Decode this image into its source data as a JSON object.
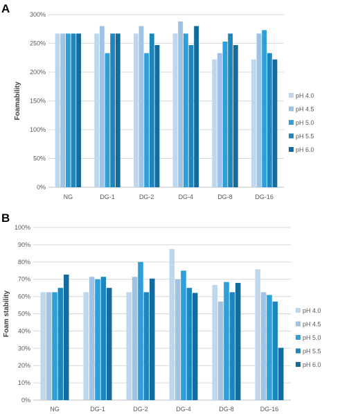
{
  "colors": [
    "#BDD7EE",
    "#9DC3E6",
    "#2E9FD8",
    "#1F86BD",
    "#136C9D"
  ],
  "chart_data": [
    {
      "panel_label": "A",
      "type": "bar",
      "categories": [
        "NG",
        "DG-1",
        "DG-2",
        "DG-4",
        "DG-8",
        "DG-16"
      ],
      "ylabel": "Foamability",
      "ylim": [
        0,
        300
      ],
      "yticks": [
        "0%",
        "50%",
        "100%",
        "150%",
        "200%",
        "250%",
        "300%"
      ],
      "series": [
        {
          "name": "pH 4.0",
          "values": [
            267,
            267,
            267,
            267,
            222,
            222
          ]
        },
        {
          "name": "pH 4.5",
          "values": [
            267,
            280,
            280,
            288,
            233,
            267
          ]
        },
        {
          "name": "pH 5.0",
          "values": [
            267,
            233,
            233,
            267,
            253,
            273
          ]
        },
        {
          "name": "pH 5.5",
          "values": [
            267,
            267,
            267,
            247,
            267,
            233
          ]
        },
        {
          "name": "pH 6.0",
          "values": [
            267,
            267,
            247,
            280,
            247,
            222
          ]
        }
      ]
    },
    {
      "panel_label": "B",
      "type": "bar",
      "categories": [
        "NG",
        "DG-1",
        "DG-2",
        "DG-4",
        "DG-8",
        "DG-16"
      ],
      "ylabel": "Foam stability",
      "ylim": [
        0,
        100
      ],
      "yticks": [
        "0%",
        "10%",
        "20%",
        "30%",
        "40%",
        "50%",
        "60%",
        "70%",
        "80%",
        "90%",
        "100%"
      ],
      "series": [
        {
          "name": "pH 4.0",
          "values": [
            62.5,
            62.5,
            62.5,
            87.5,
            66.7,
            75.8
          ]
        },
        {
          "name": "pH 4.5",
          "values": [
            62.5,
            71.4,
            71.4,
            70.0,
            57.1,
            62.5
          ]
        },
        {
          "name": "pH 5.0",
          "values": [
            62.5,
            70.0,
            80.0,
            75.0,
            68.4,
            60.9
          ]
        },
        {
          "name": "pH 5.5",
          "values": [
            65.0,
            71.4,
            62.5,
            65.0,
            62.5,
            57.1
          ]
        },
        {
          "name": "pH 6.0",
          "values": [
            72.7,
            65.0,
            70.4,
            62.1,
            67.9,
            30.3
          ]
        }
      ]
    }
  ]
}
